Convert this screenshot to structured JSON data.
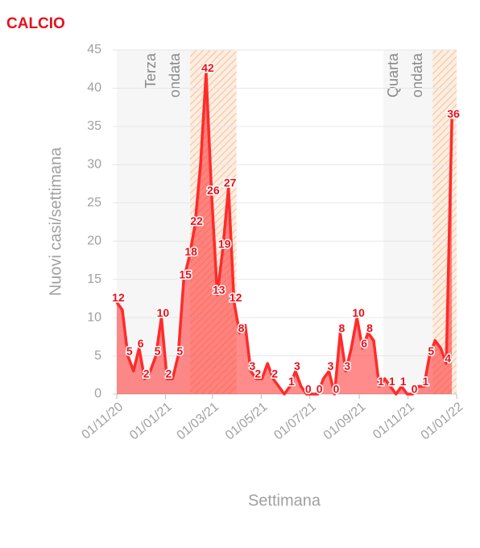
{
  "chart_data": {
    "type": "area",
    "title": "CALCIO",
    "y_label": "Nuovi casi/settimana",
    "x_label": "Settimana",
    "color": "#ff2b2b",
    "label_color": "#e8101a",
    "grid": true,
    "xlim": [
      "2020-10-27",
      "2022-01-01"
    ],
    "xticks": [
      {
        "value": "2020-11-01",
        "label": "01/11/20"
      },
      {
        "value": "2021-01-01",
        "label": "01/01/21"
      },
      {
        "value": "2021-03-01",
        "label": "01/03/21"
      },
      {
        "value": "2021-05-01",
        "label": "01/05/21"
      },
      {
        "value": "2021-07-01",
        "label": "01/07/21"
      },
      {
        "value": "2021-09-01",
        "label": "01/09/21"
      },
      {
        "value": "2021-11-01",
        "label": "01/11/21"
      },
      {
        "value": "2022-01-01",
        "label": "01/01/22"
      }
    ],
    "ylim": [
      0,
      45
    ],
    "yticks": [
      0,
      5,
      10,
      15,
      20,
      25,
      30,
      35,
      40,
      45
    ],
    "waves": [
      {
        "label": [
          "Terza",
          "ondata"
        ],
        "range": [
          "2020-11-01",
          "2021-03-31"
        ],
        "peak": [
          "2021-02-01",
          "2021-03-31"
        ]
      },
      {
        "label": [
          "Quarta",
          "ondata"
        ],
        "range": [
          "2021-10-01",
          "2022-01-01"
        ],
        "peak": [
          "2021-12-02",
          "2022-01-01"
        ]
      }
    ],
    "x": [
      "2020-11-01",
      "2020-11-08",
      "2020-11-15",
      "2020-11-22",
      "2020-11-29",
      "2020-12-06",
      "2020-12-13",
      "2020-12-20",
      "2020-12-27",
      "2021-01-03",
      "2021-01-10",
      "2021-01-17",
      "2021-01-24",
      "2021-01-31",
      "2021-02-07",
      "2021-02-14",
      "2021-02-21",
      "2021-02-28",
      "2021-03-07",
      "2021-03-14",
      "2021-03-21",
      "2021-03-28",
      "2021-04-04",
      "2021-04-11",
      "2021-04-18",
      "2021-04-25",
      "2021-05-02",
      "2021-05-09",
      "2021-05-16",
      "2021-05-23",
      "2021-05-30",
      "2021-06-06",
      "2021-06-13",
      "2021-06-20",
      "2021-06-27",
      "2021-07-04",
      "2021-07-11",
      "2021-07-18",
      "2021-07-25",
      "2021-08-01",
      "2021-08-08",
      "2021-08-15",
      "2021-08-22",
      "2021-08-29",
      "2021-09-05",
      "2021-09-12",
      "2021-09-19",
      "2021-09-26",
      "2021-10-03",
      "2021-10-10",
      "2021-10-17",
      "2021-10-24",
      "2021-10-31",
      "2021-11-07",
      "2021-11-14",
      "2021-11-21",
      "2021-11-28",
      "2021-12-05",
      "2021-12-12",
      "2021-12-19",
      "2021-12-26"
    ],
    "values": [
      12,
      11,
      5,
      3,
      6,
      2,
      3,
      5,
      10,
      2,
      2,
      5,
      15,
      18,
      22,
      30,
      42,
      26,
      13,
      19,
      27,
      12,
      8,
      9,
      3,
      2,
      2,
      4,
      2,
      1,
      0,
      1,
      3,
      1,
      0,
      0,
      0,
      2,
      3,
      0,
      8,
      3,
      6,
      10,
      6,
      8,
      7,
      1,
      2,
      1,
      0,
      1,
      0,
      0,
      1,
      1,
      5,
      7,
      6,
      4,
      36
    ],
    "value_labels": [
      "12",
      null,
      "5",
      null,
      "6",
      "2",
      null,
      "5",
      "10",
      "2",
      null,
      "5",
      "15",
      "18",
      "22",
      null,
      "42",
      "26",
      "13",
      "19",
      "27",
      "12",
      "8",
      null,
      "3",
      "2",
      null,
      null,
      "2",
      null,
      null,
      "1",
      "3",
      null,
      "0",
      null,
      "0",
      null,
      "3",
      "0",
      "8",
      "3",
      null,
      "10",
      "6",
      "8",
      null,
      "1",
      null,
      "1",
      null,
      "1",
      null,
      "0",
      null,
      "1",
      "5",
      null,
      null,
      "4",
      "36"
    ]
  }
}
